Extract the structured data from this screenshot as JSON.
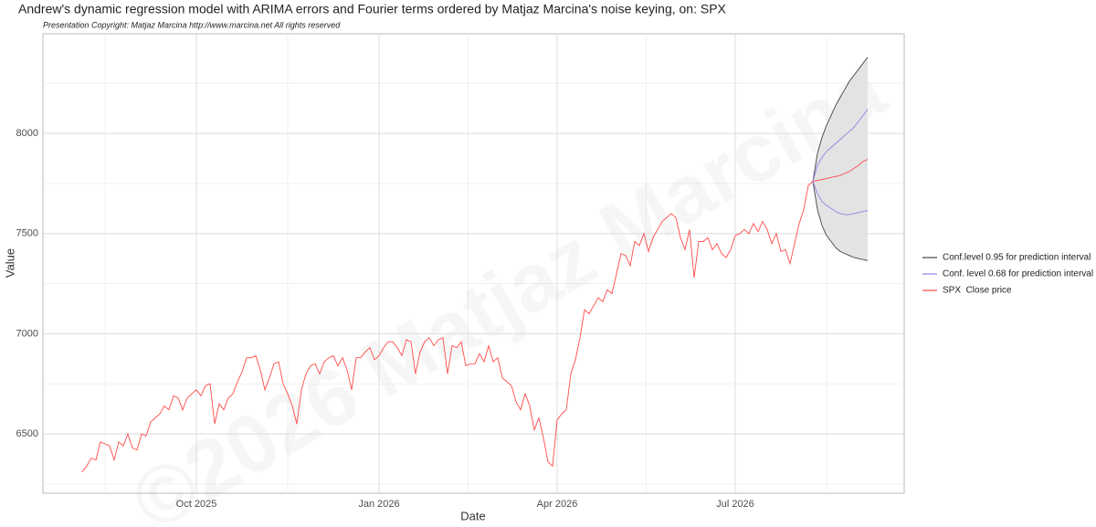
{
  "chart_data": {
    "type": "line",
    "title": "Andrew's dynamic regression model with ARIMA errors and Fourier terms ordered by Matjaz Marcina's noise keying, on: SPX",
    "subtitle": "Presentation Copyright: Matjaz Marcina http://www.marcina.net All rights reserved",
    "watermark": "©2026 Matjaz Marcina",
    "x_label": "Date",
    "y_label": "Value",
    "categories": [
      null,
      null,
      null,
      null,
      null,
      null,
      null,
      null,
      null,
      null,
      null,
      null,
      null,
      null,
      null,
      null,
      null,
      null,
      null,
      null,
      null,
      null,
      null,
      null,
      null,
      "Oct 2025",
      null,
      null,
      null,
      null,
      null,
      null,
      null,
      null,
      null,
      null,
      null,
      null,
      null,
      null,
      null,
      null,
      null,
      null,
      null,
      null,
      null,
      null,
      null,
      null,
      null,
      null,
      null,
      null,
      null,
      null,
      null,
      null,
      null,
      null,
      null,
      null,
      null,
      null,
      null,
      "Jan 2026",
      null,
      null,
      null,
      null,
      null,
      null,
      null,
      null,
      null,
      null,
      null,
      null,
      null,
      null,
      null,
      null,
      null,
      null,
      null,
      null,
      null,
      null,
      null,
      null,
      null,
      null,
      null,
      null,
      null,
      null,
      null,
      null,
      null,
      null,
      null,
      null,
      null,
      null,
      "Apr 2026",
      null,
      null,
      null,
      null,
      null,
      null,
      null,
      null,
      null,
      null,
      null,
      null,
      null,
      null,
      null,
      null,
      null,
      null,
      null,
      null,
      null,
      null,
      null,
      null,
      null,
      null,
      null,
      null,
      null,
      null,
      null,
      null,
      null,
      null,
      null,
      null,
      null,
      null,
      "Jul 2026",
      null,
      null,
      null,
      null,
      null,
      null,
      null,
      null,
      null,
      null,
      null,
      null,
      null,
      null,
      null,
      null,
      null,
      null,
      null,
      null,
      null,
      null,
      null,
      null,
      null,
      null,
      null,
      null,
      null
    ],
    "ylim": [
      6204,
      8497
    ],
    "yticks": [
      6500,
      7000,
      7500,
      8000
    ],
    "grid": true,
    "band_color": "#e3e3e3",
    "legend": "right",
    "series": [
      {
        "name": "Conf.level 0.95 for prediction interval",
        "color": "#444444",
        "upper": [
          null,
          null,
          null,
          null,
          null,
          null,
          null,
          null,
          null,
          null,
          null,
          null,
          null,
          null,
          null,
          null,
          null,
          null,
          null,
          null,
          null,
          null,
          null,
          null,
          null,
          null,
          null,
          null,
          null,
          null,
          null,
          null,
          null,
          null,
          null,
          null,
          null,
          null,
          null,
          null,
          null,
          null,
          null,
          null,
          null,
          null,
          null,
          null,
          null,
          null,
          null,
          null,
          null,
          null,
          null,
          null,
          null,
          null,
          null,
          null,
          null,
          null,
          null,
          null,
          null,
          null,
          null,
          null,
          null,
          null,
          null,
          null,
          null,
          null,
          null,
          null,
          null,
          null,
          null,
          null,
          null,
          null,
          null,
          null,
          null,
          null,
          null,
          null,
          null,
          null,
          null,
          null,
          null,
          null,
          null,
          null,
          null,
          null,
          null,
          null,
          null,
          null,
          null,
          null,
          null,
          null,
          null,
          null,
          null,
          null,
          null,
          null,
          null,
          null,
          null,
          null,
          null,
          null,
          null,
          null,
          null,
          null,
          null,
          null,
          null,
          null,
          null,
          null,
          null,
          null,
          null,
          null,
          null,
          null,
          null,
          null,
          null,
          null,
          null,
          null,
          null,
          null,
          null,
          null,
          null,
          null,
          null,
          null,
          null,
          null,
          null,
          null,
          null,
          null,
          null,
          null,
          null,
          null,
          null,
          null,
          7760,
          7900,
          7980,
          8040,
          8090,
          8140,
          8180,
          8220,
          8260,
          8290,
          8320,
          8350,
          8380
        ],
        "lower": [
          null,
          null,
          null,
          null,
          null,
          null,
          null,
          null,
          null,
          null,
          null,
          null,
          null,
          null,
          null,
          null,
          null,
          null,
          null,
          null,
          null,
          null,
          null,
          null,
          null,
          null,
          null,
          null,
          null,
          null,
          null,
          null,
          null,
          null,
          null,
          null,
          null,
          null,
          null,
          null,
          null,
          null,
          null,
          null,
          null,
          null,
          null,
          null,
          null,
          null,
          null,
          null,
          null,
          null,
          null,
          null,
          null,
          null,
          null,
          null,
          null,
          null,
          null,
          null,
          null,
          null,
          null,
          null,
          null,
          null,
          null,
          null,
          null,
          null,
          null,
          null,
          null,
          null,
          null,
          null,
          null,
          null,
          null,
          null,
          null,
          null,
          null,
          null,
          null,
          null,
          null,
          null,
          null,
          null,
          null,
          null,
          null,
          null,
          null,
          null,
          null,
          null,
          null,
          null,
          null,
          null,
          null,
          null,
          null,
          null,
          null,
          null,
          null,
          null,
          null,
          null,
          null,
          null,
          null,
          null,
          null,
          null,
          null,
          null,
          null,
          null,
          null,
          null,
          null,
          null,
          null,
          null,
          null,
          null,
          null,
          null,
          null,
          null,
          null,
          null,
          null,
          null,
          null,
          null,
          null,
          null,
          null,
          null,
          null,
          null,
          null,
          null,
          null,
          null,
          null,
          null,
          null,
          null,
          null,
          null,
          7760,
          7620,
          7540,
          7490,
          7460,
          7430,
          7410,
          7400,
          7390,
          7380,
          7375,
          7370,
          7365
        ]
      },
      {
        "name": "Conf. level 0.68 for prediction interval",
        "color": "#9b7fe8",
        "upper": [
          null,
          null,
          null,
          null,
          null,
          null,
          null,
          null,
          null,
          null,
          null,
          null,
          null,
          null,
          null,
          null,
          null,
          null,
          null,
          null,
          null,
          null,
          null,
          null,
          null,
          null,
          null,
          null,
          null,
          null,
          null,
          null,
          null,
          null,
          null,
          null,
          null,
          null,
          null,
          null,
          null,
          null,
          null,
          null,
          null,
          null,
          null,
          null,
          null,
          null,
          null,
          null,
          null,
          null,
          null,
          null,
          null,
          null,
          null,
          null,
          null,
          null,
          null,
          null,
          null,
          null,
          null,
          null,
          null,
          null,
          null,
          null,
          null,
          null,
          null,
          null,
          null,
          null,
          null,
          null,
          null,
          null,
          null,
          null,
          null,
          null,
          null,
          null,
          null,
          null,
          null,
          null,
          null,
          null,
          null,
          null,
          null,
          null,
          null,
          null,
          null,
          null,
          null,
          null,
          null,
          null,
          null,
          null,
          null,
          null,
          null,
          null,
          null,
          null,
          null,
          null,
          null,
          null,
          null,
          null,
          null,
          null,
          null,
          null,
          null,
          null,
          null,
          null,
          null,
          null,
          null,
          null,
          null,
          null,
          null,
          null,
          null,
          null,
          null,
          null,
          null,
          null,
          null,
          null,
          null,
          null,
          null,
          null,
          null,
          null,
          null,
          null,
          null,
          null,
          null,
          null,
          null,
          null,
          null,
          null,
          7760,
          7840,
          7880,
          7910,
          7930,
          7950,
          7970,
          7990,
          8010,
          8030,
          8060,
          8090,
          8120
        ],
        "lower": [
          null,
          null,
          null,
          null,
          null,
          null,
          null,
          null,
          null,
          null,
          null,
          null,
          null,
          null,
          null,
          null,
          null,
          null,
          null,
          null,
          null,
          null,
          null,
          null,
          null,
          null,
          null,
          null,
          null,
          null,
          null,
          null,
          null,
          null,
          null,
          null,
          null,
          null,
          null,
          null,
          null,
          null,
          null,
          null,
          null,
          null,
          null,
          null,
          null,
          null,
          null,
          null,
          null,
          null,
          null,
          null,
          null,
          null,
          null,
          null,
          null,
          null,
          null,
          null,
          null,
          null,
          null,
          null,
          null,
          null,
          null,
          null,
          null,
          null,
          null,
          null,
          null,
          null,
          null,
          null,
          null,
          null,
          null,
          null,
          null,
          null,
          null,
          null,
          null,
          null,
          null,
          null,
          null,
          null,
          null,
          null,
          null,
          null,
          null,
          null,
          null,
          null,
          null,
          null,
          null,
          null,
          null,
          null,
          null,
          null,
          null,
          null,
          null,
          null,
          null,
          null,
          null,
          null,
          null,
          null,
          null,
          null,
          null,
          null,
          null,
          null,
          null,
          null,
          null,
          null,
          null,
          null,
          null,
          null,
          null,
          null,
          null,
          null,
          null,
          null,
          null,
          null,
          null,
          null,
          null,
          null,
          null,
          null,
          null,
          null,
          null,
          null,
          null,
          null,
          null,
          null,
          null,
          null,
          null,
          null,
          7760,
          7700,
          7660,
          7640,
          7625,
          7610,
          7600,
          7595,
          7595,
          7600,
          7605,
          7610,
          7615
        ]
      },
      {
        "name": "SPX  Close price",
        "color": "#ff4a4a",
        "values": [
          6310,
          6340,
          6380,
          6370,
          6460,
          6450,
          6440,
          6370,
          6460,
          6440,
          6500,
          6430,
          6420,
          6500,
          6490,
          6560,
          6580,
          6600,
          6640,
          6620,
          6690,
          6680,
          6620,
          6680,
          6700,
          6720,
          6690,
          6740,
          6750,
          6550,
          6650,
          6620,
          6680,
          6700,
          6760,
          6810,
          6880,
          6880,
          6890,
          6820,
          6720,
          6780,
          6850,
          6860,
          6750,
          6700,
          6640,
          6550,
          6720,
          6800,
          6840,
          6850,
          6800,
          6860,
          6880,
          6890,
          6840,
          6880,
          6820,
          6720,
          6880,
          6880,
          6910,
          6930,
          6870,
          6890,
          6930,
          6960,
          6960,
          6930,
          6890,
          6970,
          6960,
          6800,
          6910,
          6960,
          6980,
          6940,
          6970,
          6980,
          6800,
          6940,
          6930,
          6960,
          6840,
          6850,
          6850,
          6900,
          6860,
          6940,
          6860,
          6880,
          6780,
          6760,
          6740,
          6660,
          6620,
          6700,
          6640,
          6520,
          6580,
          6480,
          6360,
          6340,
          6570,
          6600,
          6620,
          6800,
          6870,
          6980,
          7120,
          7100,
          7140,
          7180,
          7160,
          7220,
          7200,
          7300,
          7400,
          7390,
          7340,
          7460,
          7440,
          7500,
          7410,
          7480,
          7520,
          7560,
          7580,
          7600,
          7580,
          7480,
          7420,
          7520,
          7280,
          7460,
          7460,
          7480,
          7420,
          7450,
          7400,
          7380,
          7420,
          7490,
          7500,
          7520,
          7500,
          7550,
          7510,
          7560,
          7520,
          7450,
          7500,
          7410,
          7420,
          7350,
          7450,
          7550,
          7620,
          7740,
          7760,
          7765,
          7770,
          7775,
          7780,
          7785,
          7790,
          7800,
          7810,
          7825,
          7840,
          7860,
          7870
        ]
      }
    ]
  }
}
